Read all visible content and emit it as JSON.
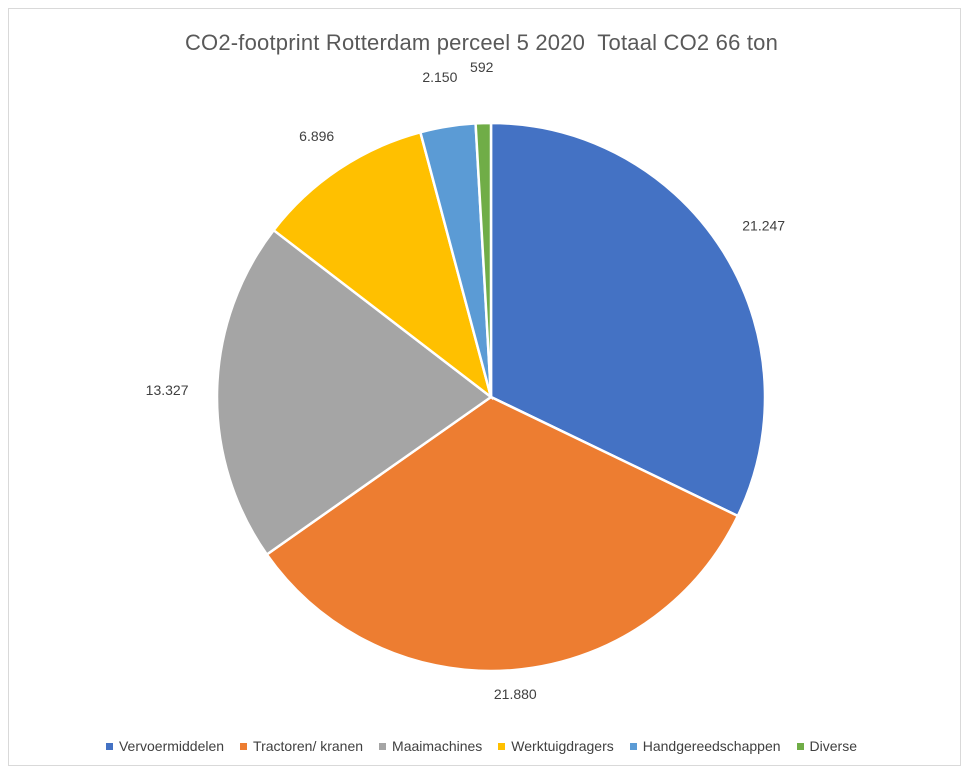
{
  "chart_data": {
    "type": "pie",
    "title": "CO2-footprint Rotterdam perceel 5 2020  Totaal CO2 66 ton",
    "categories": [
      "Vervoermiddelen",
      "Tractoren/ kranen",
      "Maaimachines",
      "Werktuigdragers",
      "Handgereedschappen",
      "Diverse"
    ],
    "values": [
      21247,
      21880,
      13327,
      6896,
      2150,
      592
    ],
    "data_labels": [
      "21.247",
      "21.880",
      "13.327",
      "6.896",
      "2.150",
      "592"
    ],
    "colors": [
      "#4472C4",
      "#ED7D31",
      "#A5A5A5",
      "#FFC000",
      "#5B9BD5",
      "#70AD47"
    ],
    "legend_position": "bottom",
    "start_angle": "top, clockwise"
  }
}
